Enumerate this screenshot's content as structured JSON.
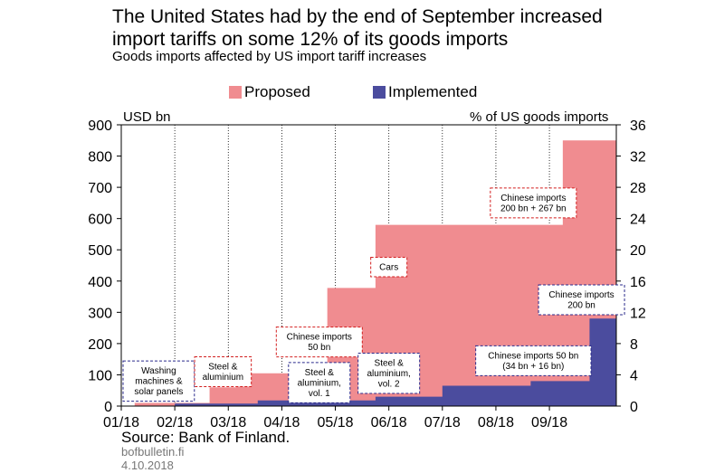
{
  "title_line1": "The United States had by the end of September increased",
  "title_line2": "import tariffs on some 12% of its goods imports",
  "subtitle": "Goods imports affected by US import tariff increases",
  "legend": {
    "proposed": "Proposed",
    "implemented": "Implemented"
  },
  "colors": {
    "proposed": "#f08c90",
    "implemented": "#4b4c9e",
    "grid": "#000000"
  },
  "chart_data": {
    "type": "area",
    "ylabel": "USD bn",
    "y2label": "% of US goods imports",
    "ylim": [
      0,
      900
    ],
    "y2lim": [
      0,
      36
    ],
    "yticks": [
      "0",
      "100",
      "200",
      "300",
      "400",
      "500",
      "600",
      "700",
      "800",
      "900"
    ],
    "y2ticks": [
      "0",
      "4",
      "8",
      "12",
      "16",
      "20",
      "24",
      "28",
      "32",
      "36"
    ],
    "xticks": [
      "01/18",
      "02/18",
      "03/18",
      "04/18",
      "05/18",
      "06/18",
      "07/18",
      "08/18",
      "09/18"
    ],
    "xlim": [
      0,
      9.25
    ],
    "series": [
      {
        "name": "Proposed",
        "points": [
          [
            0,
            0
          ],
          [
            0.25,
            0
          ],
          [
            0.25,
            10
          ],
          [
            1.65,
            10
          ],
          [
            1.65,
            60
          ],
          [
            2.15,
            60
          ],
          [
            2.15,
            105
          ],
          [
            3.85,
            105
          ],
          [
            3.85,
            378
          ],
          [
            4.75,
            378
          ],
          [
            4.75,
            580
          ],
          [
            8.25,
            580
          ],
          [
            8.25,
            850
          ],
          [
            9.25,
            850
          ]
        ]
      },
      {
        "name": "Implemented",
        "points": [
          [
            0,
            0
          ],
          [
            1.0,
            0
          ],
          [
            1.0,
            8
          ],
          [
            2.55,
            8
          ],
          [
            2.55,
            18
          ],
          [
            4.75,
            18
          ],
          [
            4.75,
            30
          ],
          [
            6.0,
            30
          ],
          [
            6.0,
            65
          ],
          [
            7.65,
            65
          ],
          [
            7.65,
            80
          ],
          [
            8.75,
            80
          ],
          [
            8.75,
            280
          ],
          [
            9.25,
            280
          ]
        ]
      }
    ],
    "annotations": [
      {
        "lines": [
          "Washing",
          "machines &",
          "solar panels"
        ],
        "style": "blue",
        "x": 0.7,
        "y": 80
      },
      {
        "lines": [
          "Steel &",
          "aluminium"
        ],
        "style": "red",
        "x": 1.9,
        "y": 110
      },
      {
        "lines": [
          "Chinese imports",
          "50 bn"
        ],
        "style": "red",
        "x": 3.7,
        "y": 205
      },
      {
        "lines": [
          "Steel &",
          "aluminium,",
          "vol. 1"
        ],
        "style": "blue",
        "x": 3.7,
        "y": 75
      },
      {
        "lines": [
          "Cars"
        ],
        "style": "red",
        "x": 5.0,
        "y": 445
      },
      {
        "lines": [
          "Steel &",
          "aluminium,",
          "vol. 2"
        ],
        "style": "blue",
        "x": 5.0,
        "y": 105
      },
      {
        "lines": [
          "Chinese imports",
          "200 bn + 267 bn"
        ],
        "style": "red",
        "x": 7.7,
        "y": 650
      },
      {
        "lines": [
          "Chinese imports",
          "200 bn"
        ],
        "style": "blue",
        "x": 8.6,
        "y": 340
      },
      {
        "lines": [
          "Chinese imports 50 bn",
          "(34 bn + 16 bn)"
        ],
        "style": "blue",
        "x": 7.7,
        "y": 145
      }
    ]
  },
  "footer": {
    "source": "Source: Bank of Finland.",
    "site": "bofbulletin.fi",
    "date": "4.10.2018"
  }
}
